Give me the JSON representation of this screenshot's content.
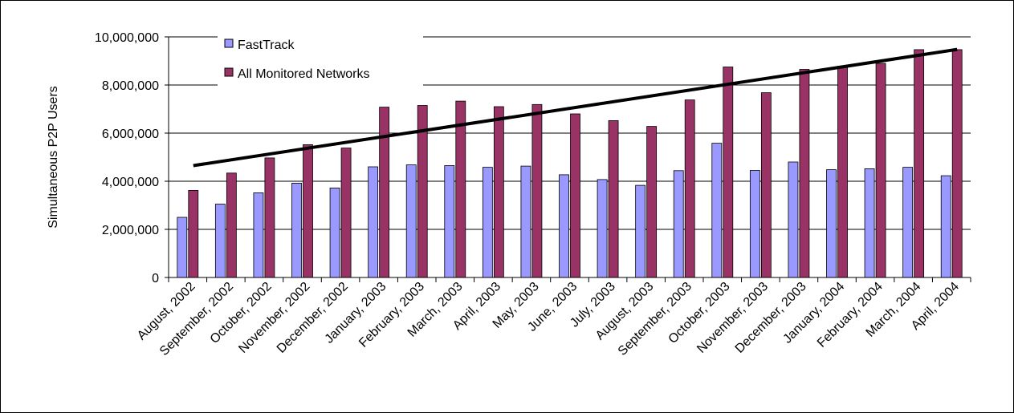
{
  "chart_data": {
    "type": "bar",
    "title": "",
    "xlabel": "",
    "ylabel": "Simultaneous P2P Users",
    "ylim": [
      0,
      10000000
    ],
    "yticks": [
      "0",
      "2,000,000",
      "4,000,000",
      "6,000,000",
      "8,000,000",
      "10,000,000"
    ],
    "ytick_values": [
      0,
      2000000,
      4000000,
      6000000,
      8000000,
      10000000
    ],
    "grid": "horizontal",
    "legend_position": "top-left",
    "categories": [
      "August, 2002",
      "September, 2002",
      "October, 2002",
      "November, 2002",
      "December, 2002",
      "January, 2003",
      "February, 2003",
      "March, 2003",
      "April, 2003",
      "May, 2003",
      "June, 2003",
      "July, 2003",
      "August, 2003",
      "September, 2003",
      "October, 2003",
      "November, 2003",
      "December, 2003",
      "January, 2004",
      "February, 2004",
      "March, 2004",
      "April, 2004"
    ],
    "series": [
      {
        "name": "FastTrack",
        "color": "#9999ff",
        "values": [
          2500000,
          3050000,
          3520000,
          3920000,
          3720000,
          4600000,
          4680000,
          4650000,
          4580000,
          4630000,
          4270000,
          4070000,
          3830000,
          4440000,
          5580000,
          4450000,
          4800000,
          4480000,
          4520000,
          4580000,
          4230000
        ]
      },
      {
        "name": "All Monitored Networks",
        "color": "#993366",
        "values": [
          3620000,
          4340000,
          4970000,
          5520000,
          5380000,
          7080000,
          7150000,
          7330000,
          7100000,
          7190000,
          6800000,
          6520000,
          6280000,
          7380000,
          8750000,
          7680000,
          8650000,
          8780000,
          8900000,
          9470000,
          9470000
        ]
      }
    ],
    "trendline": {
      "series": "All Monitored Networks",
      "start": 4650000,
      "end": 9480000,
      "color": "#000000"
    }
  }
}
